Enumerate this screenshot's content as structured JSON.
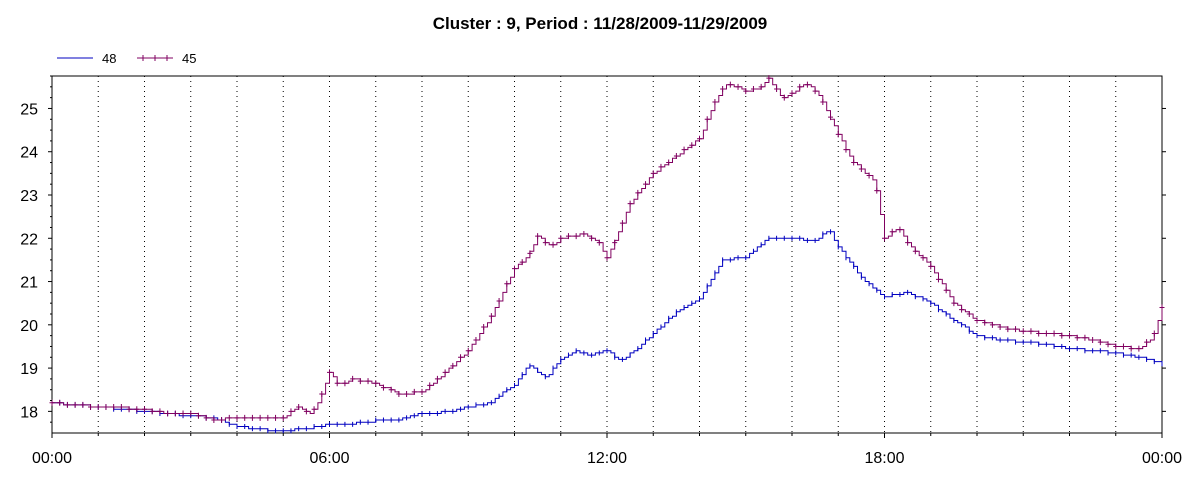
{
  "chart_data": {
    "type": "line",
    "title": "Cluster : 9, Period : 11/28/2009-11/29/2009",
    "xlabel": "",
    "ylabel": "",
    "x_unit": "hours",
    "xlim": [
      0,
      24
    ],
    "ylim": [
      17.5,
      25.75
    ],
    "x_ticks": [
      {
        "value": 0,
        "label": "00:00"
      },
      {
        "value": 6,
        "label": "06:00"
      },
      {
        "value": 12,
        "label": "12:00"
      },
      {
        "value": 18,
        "label": "18:00"
      },
      {
        "value": 24,
        "label": "00:00"
      }
    ],
    "y_ticks": [
      18,
      19,
      20,
      21,
      22,
      23,
      24,
      25
    ],
    "grid": "vertical dotted every hour",
    "legend_position": "top-left",
    "series": [
      {
        "name": "48",
        "color": "#0000c0",
        "marker": "none",
        "x": [
          0,
          0.5,
          1,
          1.5,
          2,
          2.5,
          3,
          3.5,
          4,
          4.5,
          5,
          5.5,
          6,
          6.5,
          7,
          7.5,
          8,
          8.5,
          9,
          9.5,
          9.8,
          10,
          10.3,
          10.7,
          11,
          11.3,
          11.6,
          12,
          12.3,
          12.7,
          13,
          13.5,
          14,
          14.5,
          15,
          15.5,
          16,
          16.5,
          16.8,
          17,
          17.5,
          18,
          18.5,
          19,
          19.5,
          20,
          20.5,
          21,
          21.5,
          22,
          22.5,
          23,
          23.5,
          24
        ],
        "y": [
          18.2,
          18.15,
          18.1,
          18.05,
          18.0,
          17.95,
          17.9,
          17.85,
          17.65,
          17.58,
          17.55,
          17.6,
          17.7,
          17.72,
          17.78,
          17.82,
          17.95,
          17.98,
          18.1,
          18.2,
          18.5,
          18.6,
          19.05,
          18.8,
          19.2,
          19.4,
          19.3,
          19.4,
          19.15,
          19.5,
          19.8,
          20.3,
          20.6,
          21.5,
          21.55,
          22.0,
          22.0,
          21.95,
          22.2,
          21.8,
          21.1,
          20.65,
          20.75,
          20.5,
          20.1,
          19.75,
          19.65,
          19.6,
          19.55,
          19.45,
          19.4,
          19.35,
          19.25,
          19.1
        ]
      },
      {
        "name": "45",
        "color": "#800060",
        "marker": "plus",
        "x": [
          0,
          0.5,
          1,
          1.5,
          2,
          2.5,
          3,
          3.5,
          4,
          4.5,
          5,
          5.3,
          5.6,
          5.8,
          6,
          6.2,
          6.5,
          6.8,
          7,
          7.5,
          8,
          8.5,
          9,
          9.5,
          10,
          10.3,
          10.5,
          10.8,
          11,
          11.3,
          11.5,
          11.8,
          12,
          12.2,
          12.5,
          13,
          13.5,
          14,
          14.3,
          14.6,
          15,
          15.3,
          15.5,
          15.8,
          16,
          16.3,
          16.6,
          17,
          17.3,
          17.6,
          17.8,
          18,
          18.3,
          18.5,
          19,
          19.5,
          20,
          20.5,
          21,
          21.5,
          22,
          22.5,
          23,
          23.5,
          23.8,
          24
        ],
        "y": [
          18.2,
          18.15,
          18.1,
          18.08,
          18.05,
          17.95,
          17.95,
          17.8,
          17.85,
          17.85,
          17.85,
          18.1,
          17.95,
          18.3,
          18.9,
          18.6,
          18.75,
          18.7,
          18.65,
          18.4,
          18.45,
          18.9,
          19.4,
          20.2,
          21.3,
          21.6,
          22.05,
          21.8,
          22.0,
          22.05,
          22.1,
          21.95,
          21.55,
          22.0,
          22.8,
          23.5,
          23.9,
          24.3,
          25.1,
          25.6,
          25.4,
          25.45,
          25.7,
          25.25,
          25.35,
          25.6,
          25.3,
          24.4,
          23.8,
          23.5,
          23.3,
          22.0,
          22.25,
          21.9,
          21.35,
          20.5,
          20.1,
          19.95,
          19.85,
          19.8,
          19.75,
          19.65,
          19.5,
          19.45,
          19.7,
          20.4
        ]
      }
    ]
  }
}
